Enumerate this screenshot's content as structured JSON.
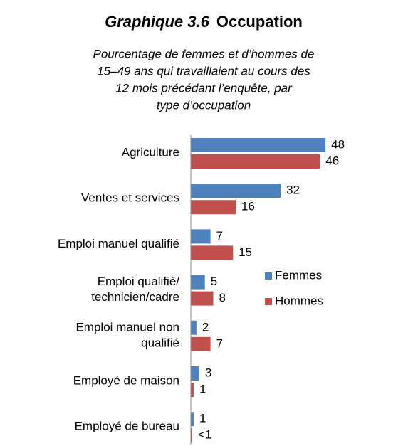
{
  "chart_data": {
    "type": "barh",
    "title_prefix": "Graphique 3.6",
    "title": "Occupation",
    "subtitle": [
      "Pourcentage de femmes et d’hommes de",
      "15–49 ans qui travaillaient au cours des",
      "12 mois précédant l’enquête, par",
      "type d’occupation"
    ],
    "categories": [
      [
        "Agriculture"
      ],
      [
        "Ventes et services"
      ],
      [
        "Emploi manuel qualifié"
      ],
      [
        "Emploi qualifié/",
        "technicien/cadre"
      ],
      [
        "Emploi manuel non",
        "qualifié"
      ],
      [
        "Employé de maison"
      ],
      [
        "Employé de bureau"
      ]
    ],
    "series": [
      {
        "name": "Femmes",
        "color": "#4f81bd",
        "values": [
          48,
          32,
          7,
          5,
          2,
          3,
          1
        ]
      },
      {
        "name": "Hommes",
        "color": "#c0504d",
        "values": [
          46,
          16,
          15,
          8,
          7,
          1,
          0.5
        ],
        "value_labels": [
          "46",
          "16",
          "15",
          "8",
          "7",
          "1",
          "<1"
        ]
      }
    ],
    "legend": "right"
  }
}
